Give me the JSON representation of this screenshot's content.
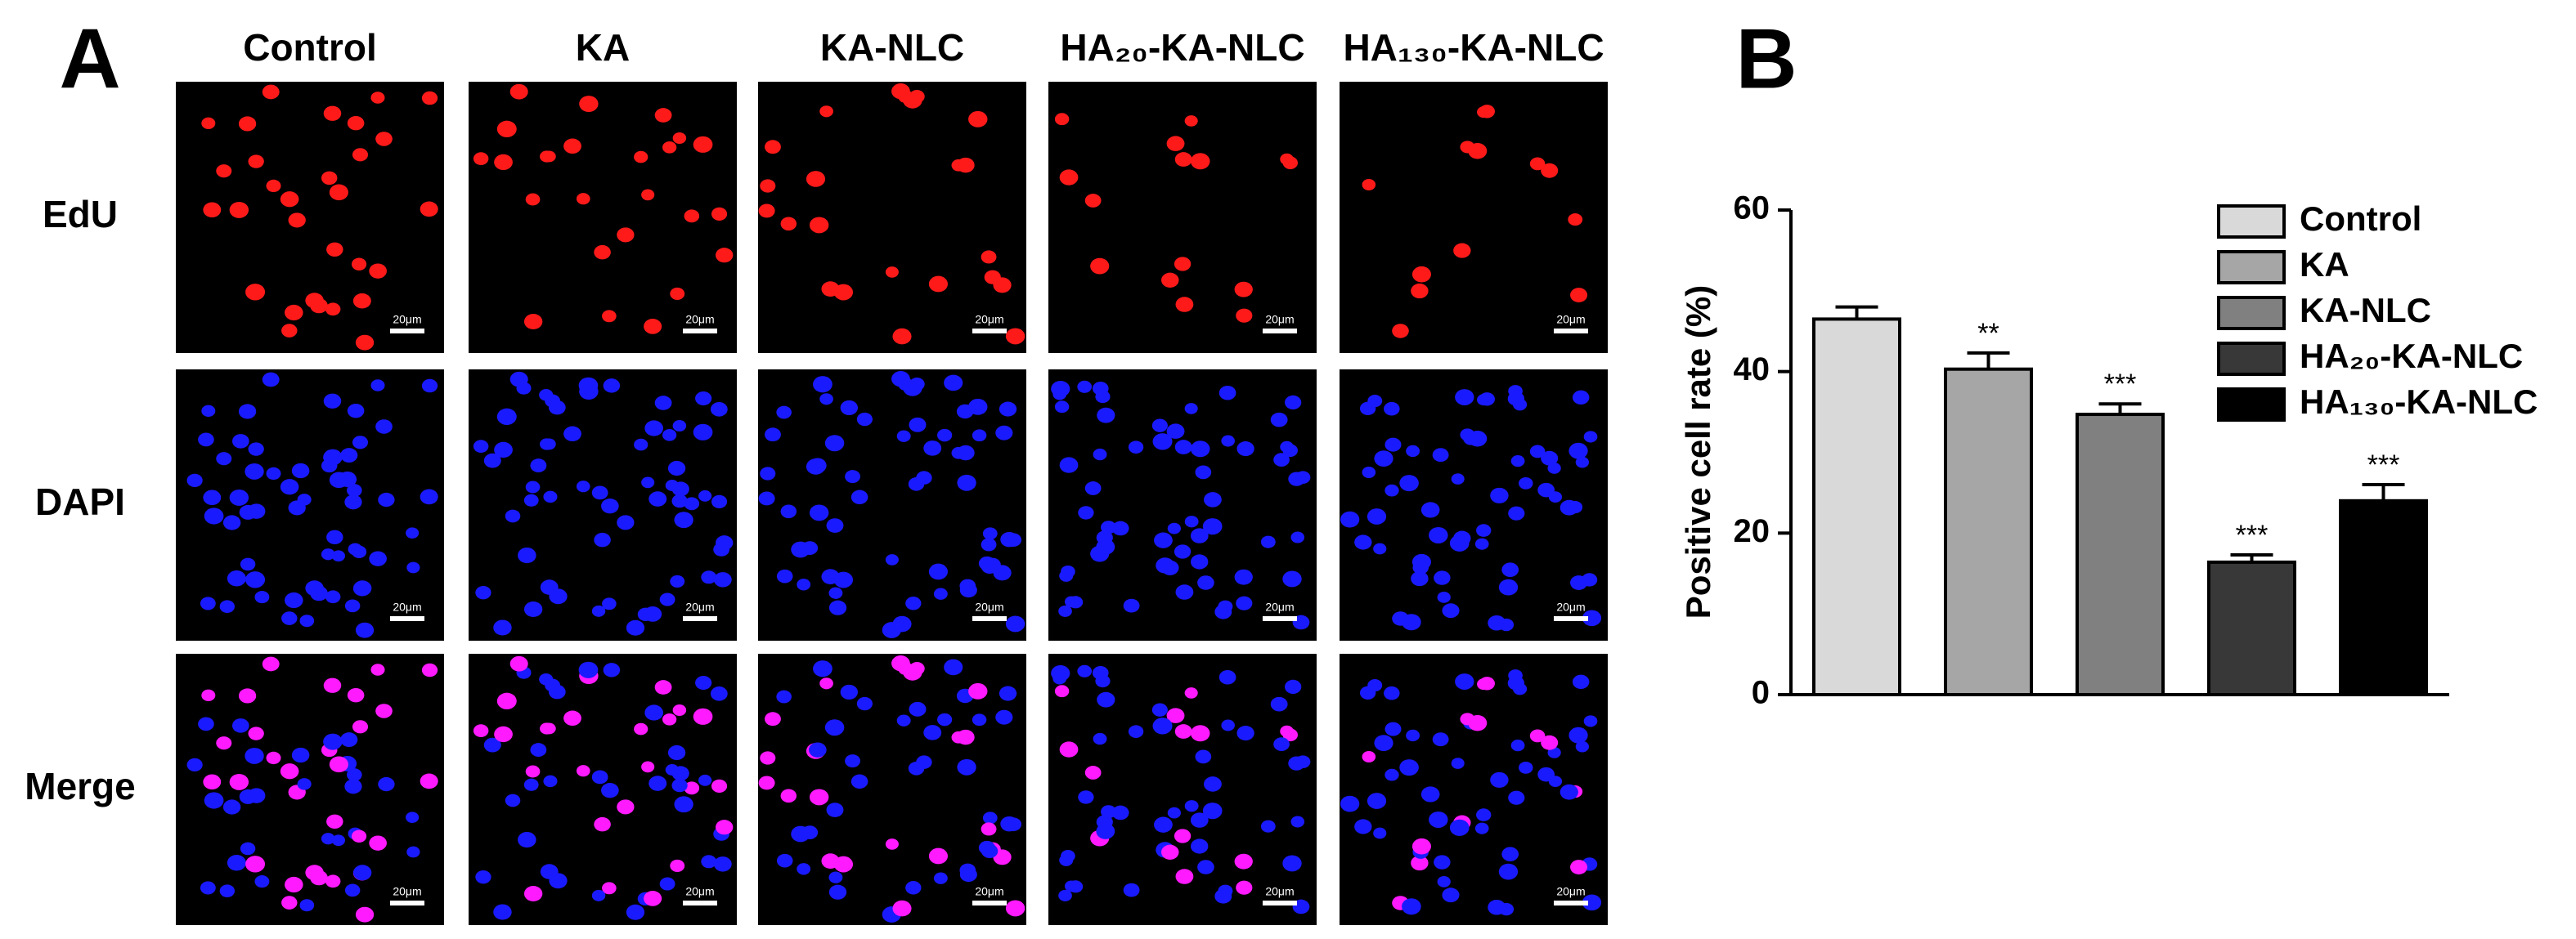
{
  "panel_a": {
    "label": "A",
    "columns": [
      "Control",
      "KA",
      "KA-NLC",
      "HA₂₀-KA-NLC",
      "HA₁₃₀-KA-NLC"
    ],
    "rows": [
      "EdU",
      "DAPI",
      "Merge"
    ],
    "scale_bar_label": "20μm"
  },
  "chart_data": {
    "type": "bar",
    "panel_label": "B",
    "ylabel": "Positive cell rate (%)",
    "categories": [
      "Control",
      "KA",
      "KA-NLC",
      "HA₂₀-KA-NLC",
      "HA₁₃₀-KA-NLC"
    ],
    "values": [
      46.5,
      40.3,
      34.7,
      16.4,
      24.0
    ],
    "errors": [
      1.5,
      2.0,
      1.3,
      0.9,
      2.0
    ],
    "significance": [
      null,
      "**",
      "***",
      "***",
      "***"
    ],
    "colors": [
      "#d9d9d9",
      "#a6a6a6",
      "#808080",
      "#383838",
      "#000000"
    ],
    "ylim": [
      0,
      60
    ],
    "yticks": [
      0,
      20,
      40,
      60
    ],
    "legend": "upper right"
  }
}
